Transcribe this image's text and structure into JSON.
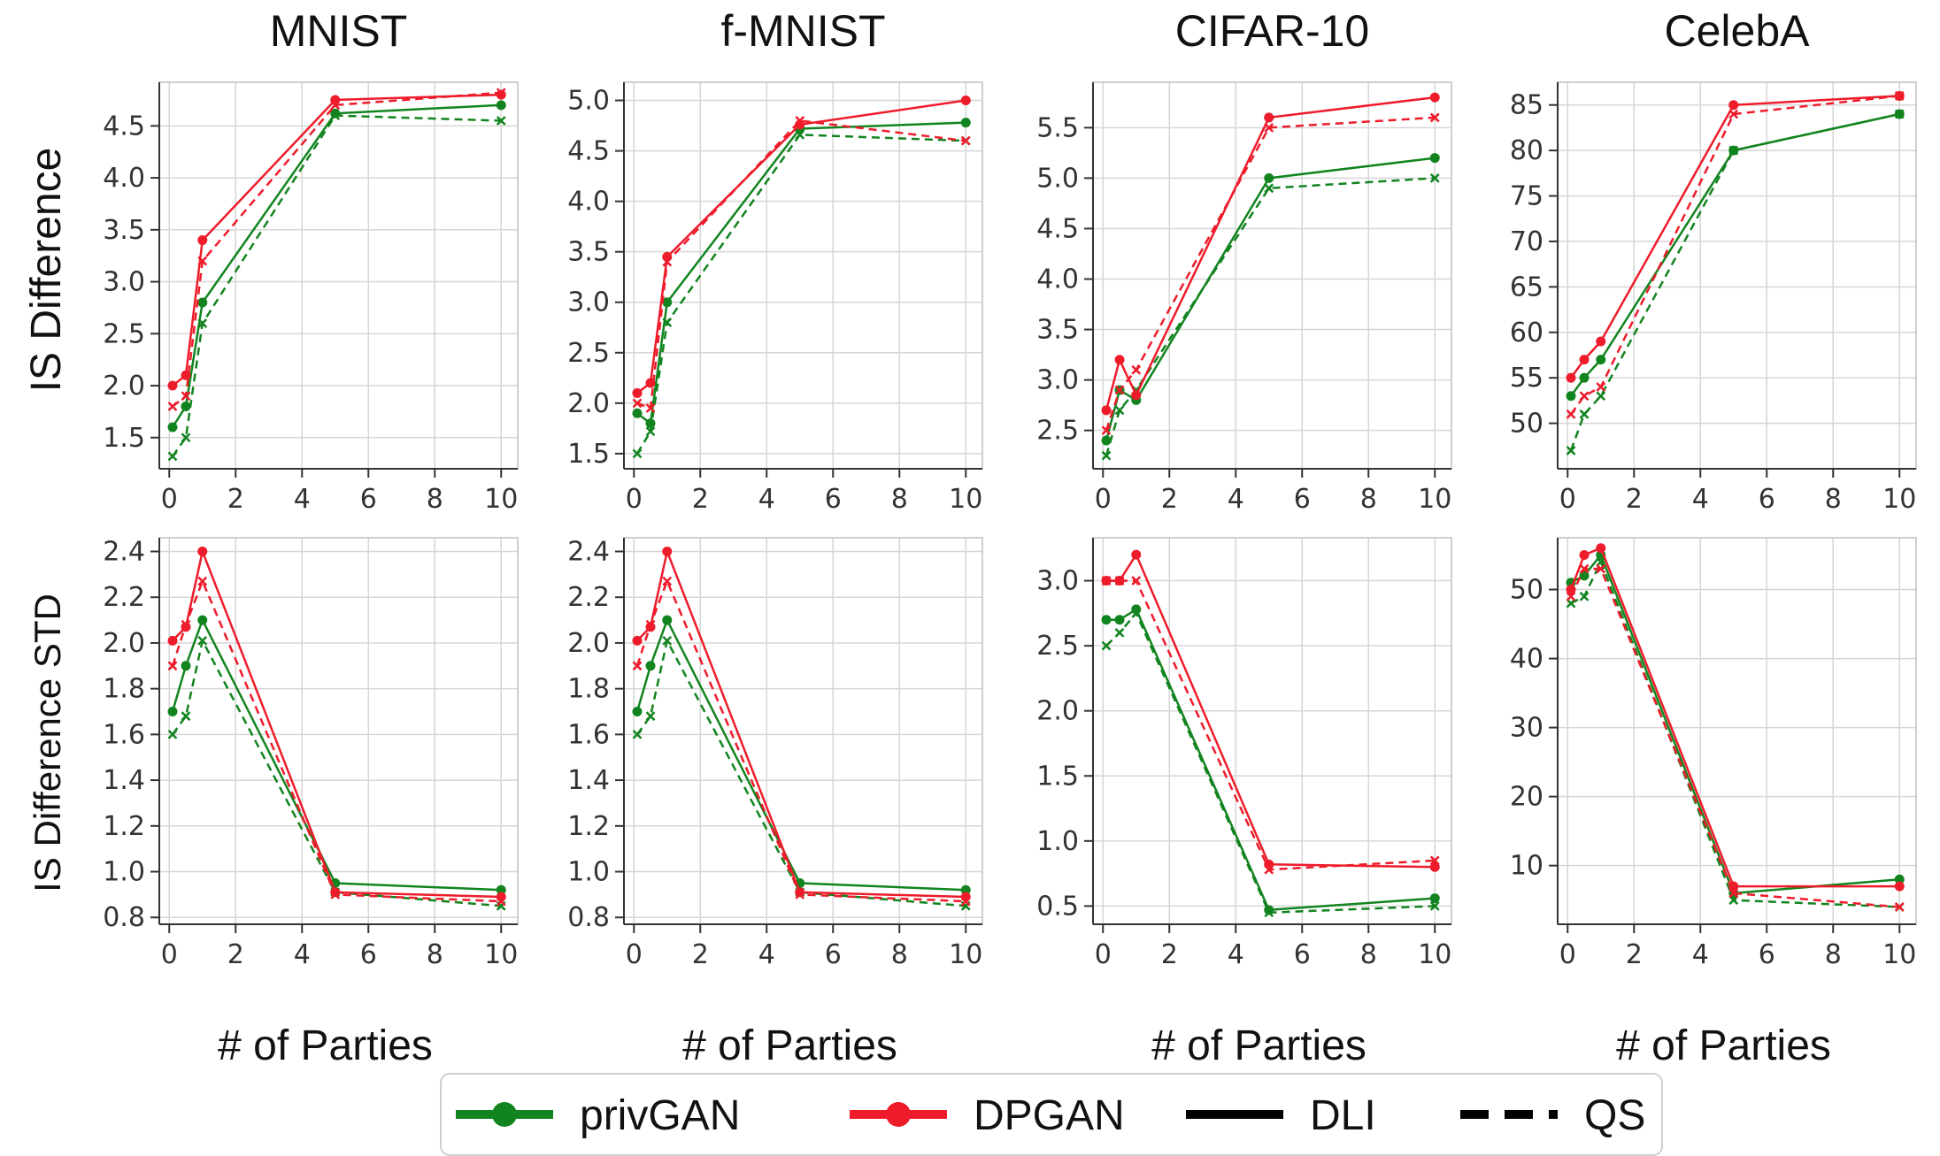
{
  "colors": {
    "privGAN": "#12841f",
    "DPGAN": "#ee1c2b",
    "grid": "#d6d6d6",
    "axis": "#333333"
  },
  "row_labels": [
    "IS  Difference",
    "IS  Difference STD"
  ],
  "x_label": "# of Parties",
  "legend": {
    "items": [
      {
        "label": "privGAN",
        "style": "marker-line",
        "color": "#12841f"
      },
      {
        "label": "DPGAN",
        "style": "marker-line",
        "color": "#ee1c2b"
      },
      {
        "label": "DLI",
        "style": "solid",
        "color": "#000000"
      },
      {
        "label": "QS",
        "style": "dashed",
        "color": "#000000"
      }
    ],
    "position": "bottom-center"
  },
  "chart_data": [
    {
      "type": "line",
      "title": "MNIST",
      "row": 0,
      "col": 0,
      "xlabel": "",
      "ylabel": "IS  Difference",
      "xlim": [
        -0.3,
        10.5
      ],
      "ylim": [
        1.2,
        4.92
      ],
      "xticks": [
        0,
        2,
        4,
        6,
        8,
        10
      ],
      "xtick_labels": [
        "0",
        "2",
        "4",
        "6",
        "8",
        "10"
      ],
      "yticks": [
        1.5,
        2.0,
        2.5,
        3.0,
        3.5,
        4.0,
        4.5
      ],
      "ytick_labels": [
        "1.5",
        "2.0",
        "2.5",
        "3.0",
        "3.5",
        "4.0",
        "4.5"
      ],
      "x": [
        0.1,
        0.5,
        1,
        5,
        10
      ],
      "series": [
        {
          "name": "privGAN",
          "method": "DLI",
          "color": "#12841f",
          "dash": false,
          "values": [
            1.6,
            1.8,
            2.8,
            4.62,
            4.7
          ]
        },
        {
          "name": "privGAN",
          "method": "QS",
          "color": "#12841f",
          "dash": true,
          "values": [
            1.32,
            1.5,
            2.6,
            4.6,
            4.55
          ]
        },
        {
          "name": "DPGAN",
          "method": "DLI",
          "color": "#ee1c2b",
          "dash": false,
          "values": [
            2.0,
            2.1,
            3.4,
            4.75,
            4.8
          ]
        },
        {
          "name": "DPGAN",
          "method": "QS",
          "color": "#ee1c2b",
          "dash": true,
          "values": [
            1.8,
            1.9,
            3.2,
            4.7,
            4.82
          ]
        }
      ]
    },
    {
      "type": "line",
      "title": "f-MNIST",
      "row": 0,
      "col": 1,
      "xlabel": "",
      "ylabel": "",
      "xlim": [
        -0.3,
        10.5
      ],
      "ylim": [
        1.35,
        5.18
      ],
      "xticks": [
        0,
        2,
        4,
        6,
        8,
        10
      ],
      "xtick_labels": [
        "0",
        "2",
        "4",
        "6",
        "8",
        "10"
      ],
      "yticks": [
        1.5,
        2.0,
        2.5,
        3.0,
        3.5,
        4.0,
        4.5,
        5.0
      ],
      "ytick_labels": [
        "1.5",
        "2.0",
        "2.5",
        "3.0",
        "3.5",
        "4.0",
        "4.5",
        "5.0"
      ],
      "x": [
        0.1,
        0.5,
        1,
        5,
        10
      ],
      "series": [
        {
          "name": "privGAN",
          "method": "DLI",
          "color": "#12841f",
          "dash": false,
          "values": [
            1.9,
            1.8,
            3.0,
            4.72,
            4.78
          ]
        },
        {
          "name": "privGAN",
          "method": "QS",
          "color": "#12841f",
          "dash": true,
          "values": [
            1.5,
            1.72,
            2.8,
            4.66,
            4.6
          ]
        },
        {
          "name": "DPGAN",
          "method": "DLI",
          "color": "#ee1c2b",
          "dash": false,
          "values": [
            2.1,
            2.2,
            3.45,
            4.76,
            5.0
          ]
        },
        {
          "name": "DPGAN",
          "method": "QS",
          "color": "#ee1c2b",
          "dash": true,
          "values": [
            2.0,
            1.95,
            3.4,
            4.8,
            4.6
          ]
        }
      ]
    },
    {
      "type": "line",
      "title": "CIFAR-10",
      "row": 0,
      "col": 2,
      "xlabel": "",
      "ylabel": "",
      "xlim": [
        -0.3,
        10.5
      ],
      "ylim": [
        2.12,
        5.95
      ],
      "xticks": [
        0,
        2,
        4,
        6,
        8,
        10
      ],
      "xtick_labels": [
        "0",
        "2",
        "4",
        "6",
        "8",
        "10"
      ],
      "yticks": [
        2.5,
        3.0,
        3.5,
        4.0,
        4.5,
        5.0,
        5.5
      ],
      "ytick_labels": [
        "2.5",
        "3.0",
        "3.5",
        "4.0",
        "4.5",
        "5.0",
        "5.5"
      ],
      "x": [
        0.1,
        0.5,
        1,
        5,
        10
      ],
      "series": [
        {
          "name": "privGAN",
          "method": "DLI",
          "color": "#12841f",
          "dash": false,
          "values": [
            2.4,
            2.9,
            2.8,
            5.0,
            5.2
          ]
        },
        {
          "name": "privGAN",
          "method": "QS",
          "color": "#12841f",
          "dash": true,
          "values": [
            2.25,
            2.7,
            2.9,
            4.9,
            5.0
          ]
        },
        {
          "name": "DPGAN",
          "method": "DLI",
          "color": "#ee1c2b",
          "dash": false,
          "values": [
            2.7,
            3.2,
            2.85,
            5.6,
            5.8
          ]
        },
        {
          "name": "DPGAN",
          "method": "QS",
          "color": "#ee1c2b",
          "dash": true,
          "values": [
            2.5,
            2.9,
            3.1,
            5.5,
            5.6
          ]
        }
      ]
    },
    {
      "type": "line",
      "title": "CelebA",
      "row": 0,
      "col": 3,
      "xlabel": "",
      "ylabel": "",
      "xlim": [
        -0.3,
        10.5
      ],
      "ylim": [
        45,
        87.5
      ],
      "xticks": [
        0,
        2,
        4,
        6,
        8,
        10
      ],
      "xtick_labels": [
        "0",
        "2",
        "4",
        "6",
        "8",
        "10"
      ],
      "yticks": [
        50,
        55,
        60,
        65,
        70,
        75,
        80,
        85
      ],
      "ytick_labels": [
        "50",
        "55",
        "60",
        "65",
        "70",
        "75",
        "80",
        "85"
      ],
      "x": [
        0.1,
        0.5,
        1,
        5,
        10
      ],
      "series": [
        {
          "name": "privGAN",
          "method": "DLI",
          "color": "#12841f",
          "dash": false,
          "values": [
            53,
            55,
            57,
            80,
            84
          ]
        },
        {
          "name": "privGAN",
          "method": "QS",
          "color": "#12841f",
          "dash": true,
          "values": [
            47,
            51,
            53,
            80,
            84
          ]
        },
        {
          "name": "DPGAN",
          "method": "DLI",
          "color": "#ee1c2b",
          "dash": false,
          "values": [
            55,
            57,
            59,
            85,
            86
          ]
        },
        {
          "name": "DPGAN",
          "method": "QS",
          "color": "#ee1c2b",
          "dash": true,
          "values": [
            51,
            53,
            54,
            84,
            86
          ]
        }
      ]
    },
    {
      "type": "line",
      "title": "",
      "row": 1,
      "col": 0,
      "xlabel": "# of Parties",
      "ylabel": "IS  Difference STD",
      "xlim": [
        -0.3,
        10.5
      ],
      "ylim": [
        0.77,
        2.46
      ],
      "xticks": [
        0,
        2,
        4,
        6,
        8,
        10
      ],
      "xtick_labels": [
        "0",
        "2",
        "4",
        "6",
        "8",
        "10"
      ],
      "yticks": [
        0.8,
        1.0,
        1.2,
        1.4,
        1.6,
        1.8,
        2.0,
        2.2,
        2.4
      ],
      "ytick_labels": [
        "0.8",
        "1.0",
        "1.2",
        "1.4",
        "1.6",
        "1.8",
        "2.0",
        "2.2",
        "2.4"
      ],
      "x": [
        0.1,
        0.5,
        1,
        5,
        10
      ],
      "series": [
        {
          "name": "privGAN",
          "method": "DLI",
          "color": "#12841f",
          "dash": false,
          "values": [
            1.7,
            1.9,
            2.1,
            0.95,
            0.92
          ]
        },
        {
          "name": "privGAN",
          "method": "QS",
          "color": "#12841f",
          "dash": true,
          "values": [
            1.6,
            1.68,
            2.01,
            0.91,
            0.85
          ]
        },
        {
          "name": "DPGAN",
          "method": "DLI",
          "color": "#ee1c2b",
          "dash": false,
          "values": [
            2.01,
            2.07,
            2.4,
            0.91,
            0.89
          ]
        },
        {
          "name": "DPGAN",
          "method": "QS",
          "color": "#ee1c2b",
          "dash": true,
          "values": [
            1.9,
            2.08,
            2.27,
            0.9,
            0.87
          ]
        }
      ]
    },
    {
      "type": "line",
      "title": "",
      "row": 1,
      "col": 1,
      "xlabel": "# of Parties",
      "ylabel": "",
      "xlim": [
        -0.3,
        10.5
      ],
      "ylim": [
        0.77,
        2.46
      ],
      "xticks": [
        0,
        2,
        4,
        6,
        8,
        10
      ],
      "xtick_labels": [
        "0",
        "2",
        "4",
        "6",
        "8",
        "10"
      ],
      "yticks": [
        0.8,
        1.0,
        1.2,
        1.4,
        1.6,
        1.8,
        2.0,
        2.2,
        2.4
      ],
      "ytick_labels": [
        "0.8",
        "1.0",
        "1.2",
        "1.4",
        "1.6",
        "1.8",
        "2.0",
        "2.2",
        "2.4"
      ],
      "x": [
        0.1,
        0.5,
        1,
        5,
        10
      ],
      "series": [
        {
          "name": "privGAN",
          "method": "DLI",
          "color": "#12841f",
          "dash": false,
          "values": [
            1.7,
            1.9,
            2.1,
            0.95,
            0.92
          ]
        },
        {
          "name": "privGAN",
          "method": "QS",
          "color": "#12841f",
          "dash": true,
          "values": [
            1.6,
            1.68,
            2.01,
            0.91,
            0.85
          ]
        },
        {
          "name": "DPGAN",
          "method": "DLI",
          "color": "#ee1c2b",
          "dash": false,
          "values": [
            2.01,
            2.07,
            2.4,
            0.91,
            0.89
          ]
        },
        {
          "name": "DPGAN",
          "method": "QS",
          "color": "#ee1c2b",
          "dash": true,
          "values": [
            1.9,
            2.08,
            2.27,
            0.9,
            0.87
          ]
        }
      ]
    },
    {
      "type": "line",
      "title": "",
      "row": 1,
      "col": 2,
      "xlabel": "# of Parties",
      "ylabel": "",
      "xlim": [
        -0.3,
        10.5
      ],
      "ylim": [
        0.36,
        3.33
      ],
      "xticks": [
        0,
        2,
        4,
        6,
        8,
        10
      ],
      "xtick_labels": [
        "0",
        "2",
        "4",
        "6",
        "8",
        "10"
      ],
      "yticks": [
        0.5,
        1.0,
        1.5,
        2.0,
        2.5,
        3.0
      ],
      "ytick_labels": [
        "0.5",
        "1.0",
        "1.5",
        "2.0",
        "2.5",
        "3.0"
      ],
      "x": [
        0.1,
        0.5,
        1,
        5,
        10
      ],
      "series": [
        {
          "name": "privGAN",
          "method": "DLI",
          "color": "#12841f",
          "dash": false,
          "values": [
            2.7,
            2.7,
            2.78,
            0.47,
            0.56
          ]
        },
        {
          "name": "privGAN",
          "method": "QS",
          "color": "#12841f",
          "dash": true,
          "values": [
            2.5,
            2.6,
            2.75,
            0.45,
            0.5
          ]
        },
        {
          "name": "DPGAN",
          "method": "DLI",
          "color": "#ee1c2b",
          "dash": false,
          "values": [
            3.0,
            3.0,
            3.2,
            0.82,
            0.8
          ]
        },
        {
          "name": "DPGAN",
          "method": "QS",
          "color": "#ee1c2b",
          "dash": true,
          "values": [
            3.0,
            3.0,
            3.0,
            0.78,
            0.85
          ]
        }
      ]
    },
    {
      "type": "line",
      "title": "",
      "row": 1,
      "col": 3,
      "xlabel": "# of Parties",
      "ylabel": "",
      "xlim": [
        -0.3,
        10.5
      ],
      "ylim": [
        1.5,
        57.5
      ],
      "xticks": [
        0,
        2,
        4,
        6,
        8,
        10
      ],
      "xtick_labels": [
        "0",
        "2",
        "4",
        "6",
        "8",
        "10"
      ],
      "yticks": [
        10,
        20,
        30,
        40,
        50
      ],
      "ytick_labels": [
        "10",
        "20",
        "30",
        "40",
        "50"
      ],
      "x": [
        0.1,
        0.5,
        1,
        5,
        10
      ],
      "series": [
        {
          "name": "privGAN",
          "method": "DLI",
          "color": "#12841f",
          "dash": false,
          "values": [
            51,
            52,
            55,
            6,
            8
          ]
        },
        {
          "name": "privGAN",
          "method": "QS",
          "color": "#12841f",
          "dash": true,
          "values": [
            48,
            49,
            54,
            5,
            4
          ]
        },
        {
          "name": "DPGAN",
          "method": "DLI",
          "color": "#ee1c2b",
          "dash": false,
          "values": [
            50,
            55,
            56,
            7,
            7
          ]
        },
        {
          "name": "DPGAN",
          "method": "QS",
          "color": "#ee1c2b",
          "dash": true,
          "values": [
            49,
            53,
            53,
            6,
            4
          ]
        }
      ]
    }
  ]
}
